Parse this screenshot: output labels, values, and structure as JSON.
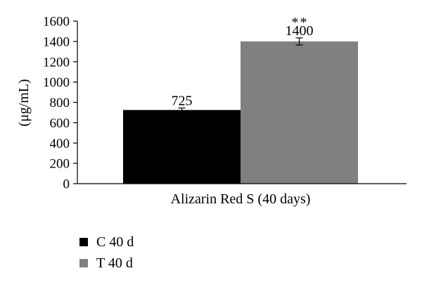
{
  "chart_data": {
    "type": "bar",
    "title": "",
    "xlabel": "Alizarin Red S (40 days)",
    "ylabel": "(μg/mL)",
    "ylim": [
      0,
      1600
    ],
    "yticks": [
      0,
      200,
      400,
      600,
      800,
      1000,
      1200,
      1400,
      1600
    ],
    "grid": false,
    "legend_position": "bottom-left",
    "series": [
      {
        "name": "C 40 d",
        "color": "#000000",
        "value": 725,
        "error": 20,
        "data_label": "725",
        "annotation": ""
      },
      {
        "name": "T 40 d",
        "color": "#808080",
        "value": 1400,
        "error": 35,
        "data_label": "1400",
        "annotation": "**"
      }
    ]
  }
}
